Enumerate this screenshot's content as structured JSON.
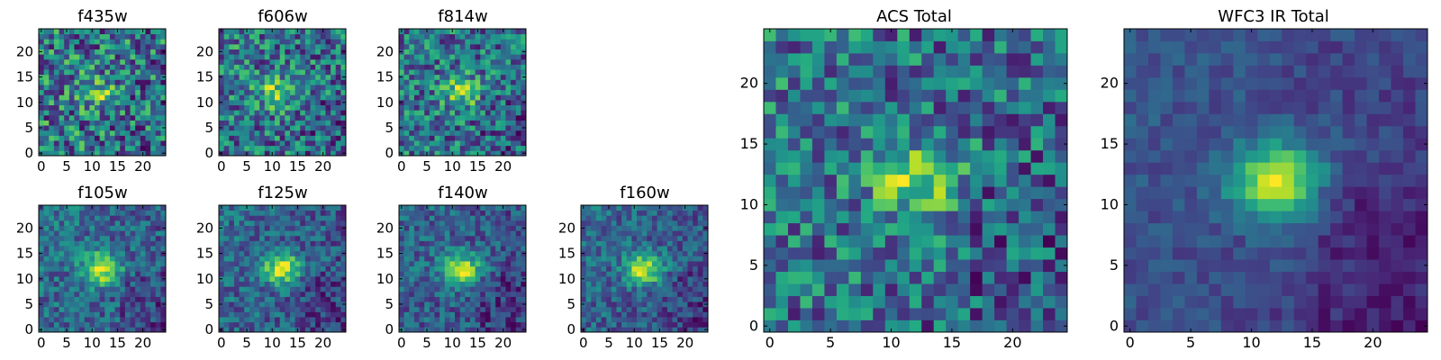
{
  "chart_data": [
    {
      "type": "heatmap",
      "title": "f435w",
      "xticks": [
        "0",
        "5",
        "10",
        "15",
        "20"
      ],
      "yticks": [
        "0",
        "5",
        "10",
        "15",
        "20"
      ],
      "xlim": [
        -0.5,
        24.5
      ],
      "ylim": [
        -0.5,
        24.5
      ],
      "blob": {
        "x": 11,
        "y": 12
      },
      "seed": 11,
      "noise": 0.55,
      "strength": 0.35
    },
    {
      "type": "heatmap",
      "title": "f606w",
      "xticks": [
        "0",
        "5",
        "10",
        "15",
        "20"
      ],
      "yticks": [
        "0",
        "5",
        "10",
        "15",
        "20"
      ],
      "xlim": [
        -0.5,
        24.5
      ],
      "ylim": [
        -0.5,
        24.5
      ],
      "blob": {
        "x": 11,
        "y": 12
      },
      "seed": 23,
      "noise": 0.5,
      "strength": 0.45
    },
    {
      "type": "heatmap",
      "title": "f814w",
      "xticks": [
        "0",
        "5",
        "10",
        "15",
        "20"
      ],
      "yticks": [
        "0",
        "5",
        "10",
        "15",
        "20"
      ],
      "xlim": [
        -0.5,
        24.5
      ],
      "ylim": [
        -0.5,
        24.5
      ],
      "blob": {
        "x": 12,
        "y": 12
      },
      "seed": 37,
      "noise": 0.5,
      "strength": 0.5
    },
    {
      "type": "heatmap",
      "title": "f105w",
      "xticks": [
        "0",
        "5",
        "10",
        "15",
        "20"
      ],
      "yticks": [
        "0",
        "5",
        "10",
        "15",
        "20"
      ],
      "xlim": [
        -0.5,
        24.5
      ],
      "ylim": [
        -0.5,
        24.5
      ],
      "blob": {
        "x": 12,
        "y": 12
      },
      "seed": 41,
      "noise": 0.3,
      "strength": 0.7
    },
    {
      "type": "heatmap",
      "title": "f125w",
      "xticks": [
        "0",
        "5",
        "10",
        "15",
        "20"
      ],
      "yticks": [
        "0",
        "5",
        "10",
        "15",
        "20"
      ],
      "xlim": [
        -0.5,
        24.5
      ],
      "ylim": [
        -0.5,
        24.5
      ],
      "blob": {
        "x": 12,
        "y": 12
      },
      "seed": 53,
      "noise": 0.3,
      "strength": 0.7
    },
    {
      "type": "heatmap",
      "title": "f140w",
      "xticks": [
        "0",
        "5",
        "10",
        "15",
        "20"
      ],
      "yticks": [
        "0",
        "5",
        "10",
        "15",
        "20"
      ],
      "xlim": [
        -0.5,
        24.5
      ],
      "ylim": [
        -0.5,
        24.5
      ],
      "blob": {
        "x": 12,
        "y": 12
      },
      "seed": 67,
      "noise": 0.3,
      "strength": 0.75
    },
    {
      "type": "heatmap",
      "title": "f160w",
      "xticks": [
        "0",
        "5",
        "10",
        "15",
        "20"
      ],
      "yticks": [
        "0",
        "5",
        "10",
        "15",
        "20"
      ],
      "xlim": [
        -0.5,
        24.5
      ],
      "ylim": [
        -0.5,
        24.5
      ],
      "blob": {
        "x": 12,
        "y": 12
      },
      "seed": 79,
      "noise": 0.3,
      "strength": 0.8
    },
    {
      "type": "heatmap",
      "title": "ACS Total",
      "xticks": [
        "0",
        "5",
        "10",
        "15",
        "20"
      ],
      "yticks": [
        "0",
        "5",
        "10",
        "15",
        "20"
      ],
      "xlim": [
        -0.5,
        24.5
      ],
      "ylim": [
        -0.5,
        24.5
      ],
      "blob": {
        "x": 12,
        "y": 12
      },
      "seed": 97,
      "noise": 0.45,
      "strength": 0.5
    },
    {
      "type": "heatmap",
      "title": "WFC3 IR Total",
      "xticks": [
        "0",
        "5",
        "10",
        "15",
        "20"
      ],
      "yticks": [
        "0",
        "5",
        "10",
        "15",
        "20"
      ],
      "xlim": [
        -0.5,
        24.5
      ],
      "ylim": [
        -0.5,
        24.5
      ],
      "blob": {
        "x": 12,
        "y": 12
      },
      "seed": 101,
      "noise": 0.15,
      "strength": 0.85
    }
  ],
  "colormap": "viridis"
}
